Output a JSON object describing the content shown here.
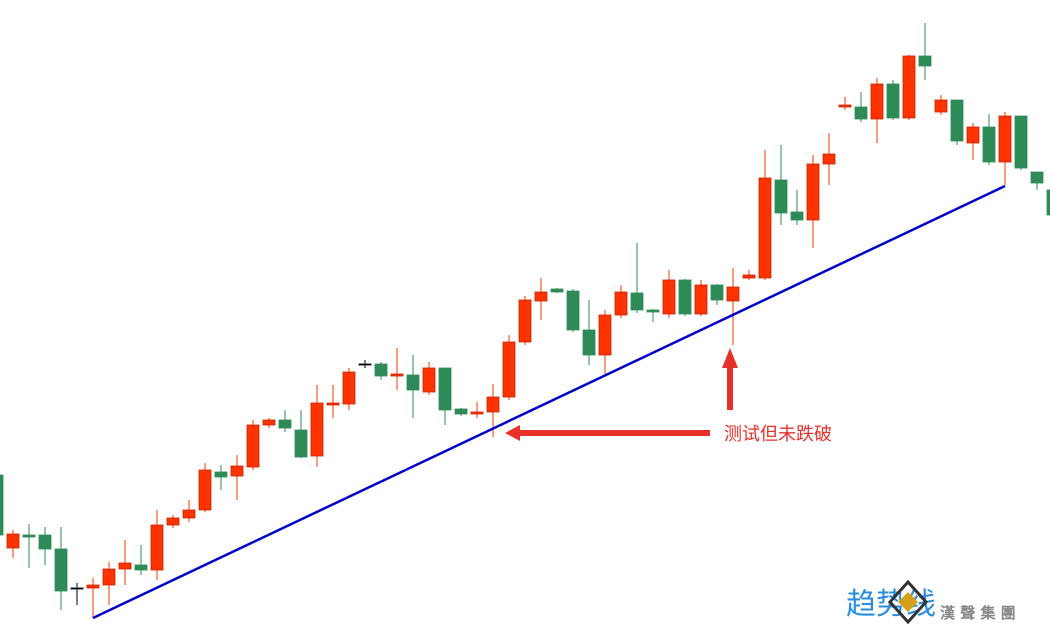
{
  "chart_data": {
    "type": "candlestick",
    "categories": [
      null,
      null,
      null,
      null,
      null,
      null,
      null,
      null,
      null,
      null,
      null,
      null,
      null,
      null,
      null,
      null,
      null,
      null,
      null,
      null,
      null,
      null,
      null,
      null,
      null,
      null,
      null,
      null,
      null,
      null,
      null,
      null,
      null,
      null,
      null,
      null,
      null,
      null,
      null,
      null,
      null,
      null,
      null,
      null,
      null,
      null,
      null,
      null,
      null,
      null,
      null,
      null,
      null,
      null,
      null,
      null,
      null,
      null,
      null,
      null,
      null,
      null,
      null,
      null,
      null,
      null,
      null
    ],
    "open": [
      157,
      84,
      97,
      97,
      83,
      44,
      44,
      47,
      63,
      67,
      62,
      107,
      114,
      122,
      160,
      156,
      165,
      207,
      212,
      202,
      176,
      227,
      228,
      268,
      268,
      256,
      257,
      240,
      264,
      223,
      218,
      220,
      235,
      290,
      331,
      343,
      341,
      302,
      277,
      317,
      339,
      322,
      318,
      352,
      318,
      347,
      331,
      354,
      354,
      452,
      420,
      412,
      468,
      525,
      525,
      513,
      548,
      514,
      576,
      520,
      532,
      489,
      505,
      470,
      516,
      460,
      442
    ],
    "high": [
      157,
      102,
      108,
      105,
      105,
      49,
      54,
      70,
      92,
      87,
      122,
      117,
      132,
      169,
      167,
      177,
      212,
      214,
      222,
      222,
      247,
      247,
      264,
      272,
      270,
      284,
      277,
      270,
      264,
      224,
      230,
      248,
      297,
      336,
      354,
      344,
      343,
      332,
      322,
      347,
      389,
      323,
      362,
      353,
      352,
      348,
      364,
      362,
      482,
      487,
      442,
      477,
      499,
      535,
      540,
      554,
      552,
      577,
      609,
      537,
      532,
      509,
      518,
      520,
      516,
      460,
      447
    ],
    "low": [
      92,
      74,
      64,
      67,
      22,
      27,
      14,
      27,
      47,
      57,
      52,
      104,
      110,
      120,
      142,
      132,
      162,
      204,
      200,
      174,
      165,
      214,
      222,
      264,
      252,
      242,
      214,
      237,
      207,
      216,
      214,
      195,
      232,
      287,
      312,
      339,
      300,
      267,
      257,
      314,
      319,
      310,
      314,
      316,
      316,
      327,
      287,
      352,
      352,
      407,
      407,
      384,
      447,
      522,
      510,
      489,
      512,
      512,
      552,
      517,
      487,
      472,
      467,
      447,
      462,
      442,
      417
    ],
    "close": [
      97,
      98,
      95,
      83,
      41,
      44,
      47,
      63,
      69,
      62,
      107,
      114,
      122,
      162,
      155,
      166,
      207,
      212,
      204,
      175,
      229,
      229,
      260,
      268,
      256,
      258,
      242,
      264,
      222,
      218,
      220,
      235,
      290,
      332,
      340,
      340,
      302,
      277,
      317,
      340,
      322,
      320,
      352,
      318,
      347,
      332,
      345,
      357,
      454,
      419,
      412,
      468,
      478,
      527,
      513,
      548,
      514,
      576,
      566,
      532,
      491,
      505,
      470,
      516,
      464,
      449,
      417
    ],
    "up_color": "#ff3300",
    "down_color": "#2e8b57",
    "ylim": [
      0,
      632
    ],
    "trendline": {
      "x": [
        6,
        63
      ],
      "values": [
        14,
        446
      ],
      "color": "#0000cc"
    },
    "annotation": "测试但未跌破",
    "annotation_color": "#e8302a"
  },
  "watermark": {
    "title": "趋势线",
    "subtitle": "漢 聲 集 團"
  }
}
